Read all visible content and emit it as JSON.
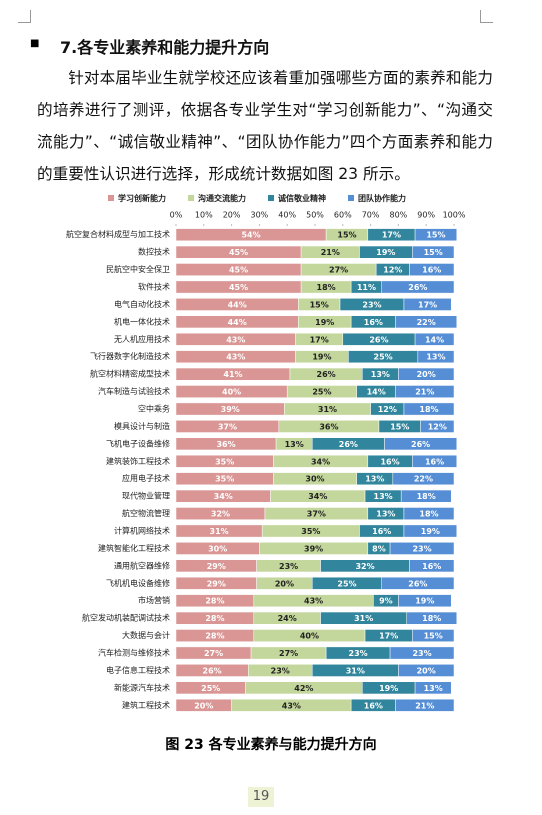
{
  "heading": "7.各专业素养和能力提升方向",
  "paragraph": "针对本届毕业生就学校还应该着重加强哪些方面的素养和能力的培养进行了测评，依据各专业学生对“学习创新能力”、“沟通交流能力”、“诚信敬业精神”、“团队协作能力”四个方面素养和能力的重要性认识进行选择，形成统计数据如图 23 所示。",
  "chart_data": {
    "type": "bar",
    "stacked": true,
    "orientation": "horizontal",
    "legend": "top",
    "categories": [
      "航空复合材料成型与加工技术",
      "数控技术",
      "民航空中安全保卫",
      "软件技术",
      "电气自动化技术",
      "机电一体化技术",
      "无人机应用技术",
      "飞行器数字化制造技术",
      "航空材料精密成型技术",
      "汽车制造与试验技术",
      "空中乘务",
      "模具设计与制造",
      "飞机电子设备维修",
      "建筑装饰工程技术",
      "应用电子技术",
      "现代物业管理",
      "航空物流管理",
      "计算机网络技术",
      "建筑智能化工程技术",
      "通用航空器维修",
      "飞机机电设备维修",
      "市场营销",
      "航空发动机装配调试技术",
      "大数据与会计",
      "汽车检测与维修技术",
      "电子信息工程技术",
      "新能源汽车技术",
      "建筑工程技术"
    ],
    "series": [
      {
        "name": "学习创新能力",
        "color": "#d99694",
        "values": [
          54,
          45,
          45,
          45,
          44,
          44,
          43,
          43,
          41,
          40,
          39,
          37,
          36,
          35,
          35,
          34,
          32,
          31,
          30,
          29,
          29,
          28,
          28,
          28,
          27,
          26,
          25,
          20
        ],
        "value_labels": [
          "54%",
          "45%",
          "45%",
          "45%",
          "44%",
          "44%",
          "43%",
          "43%",
          "41%",
          "40%",
          "39%",
          "37%",
          "36%",
          "35%",
          "35%",
          "34%",
          "32%",
          "31%",
          "30%",
          "29%",
          "29%",
          "28%",
          "28%",
          "28%",
          "27%",
          "26%",
          "25%",
          "20%"
        ]
      },
      {
        "name": "沟通交流能力",
        "color": "#c3d69b",
        "values": [
          15,
          21,
          27,
          18,
          15,
          19,
          17,
          19,
          26,
          25,
          31,
          36,
          13,
          34,
          30,
          34,
          37,
          35,
          39,
          23,
          20,
          43,
          24,
          40,
          27,
          23,
          42,
          43
        ],
        "value_labels": [
          "15%",
          "21%",
          "27%",
          "18%",
          "15%",
          "19%",
          "17%",
          "19%",
          "26%",
          "25%",
          "31%",
          "36%",
          "13%",
          "34%",
          "30%",
          "34%",
          "37%",
          "35%",
          "39%",
          "23%",
          "20%",
          "43%",
          "24%",
          "40%",
          "27%",
          "23%",
          "42%",
          "43%"
        ]
      },
      {
        "name": "诚信敬业精神",
        "color": "#31859c",
        "values": [
          17,
          19,
          12,
          11,
          23,
          16,
          26,
          25,
          13,
          14,
          12,
          15,
          26,
          16,
          13,
          13,
          13,
          16,
          8,
          32,
          25,
          9,
          31,
          17,
          23,
          31,
          19,
          16
        ],
        "value_labels": [
          "17%",
          "19%",
          "12%",
          "11%",
          "23%",
          "16%",
          "26%",
          "25%",
          "13%",
          "14%",
          "12%",
          "15%",
          "26%",
          "16%",
          "13%",
          "13%",
          "13%",
          "16%",
          "8%",
          "32%",
          "25%",
          "9%",
          "31%",
          "17%",
          "23%",
          "31%",
          "19%",
          "16%"
        ]
      },
      {
        "name": "团队协作能力",
        "color": "#558ed5",
        "values": [
          15,
          15,
          16,
          26,
          17,
          22,
          14,
          13,
          20,
          21,
          18,
          12,
          26,
          16,
          22,
          18,
          18,
          19,
          23,
          16,
          26,
          19,
          18,
          15,
          23,
          20,
          13,
          21
        ],
        "value_labels": [
          "15%",
          "15%",
          "16%",
          "26%",
          "17%",
          "22%",
          "14%",
          "13%",
          "20%",
          "21%",
          "18%",
          "12%",
          "26%",
          "16%",
          "22%",
          "18%",
          "18%",
          "19%",
          "23%",
          "16%",
          "26%",
          "19%",
          "18%",
          "15%",
          "23%",
          "20%",
          "13%",
          "21%"
        ]
      }
    ],
    "xlim": [
      0,
      100
    ],
    "xticks": [
      {
        "value": 0,
        "label": "0%"
      },
      {
        "value": 10,
        "label": "10%"
      },
      {
        "value": 20,
        "label": "20%"
      },
      {
        "value": 30,
        "label": "30%"
      },
      {
        "value": 40,
        "label": "40%"
      },
      {
        "value": 50,
        "label": "50%"
      },
      {
        "value": 60,
        "label": "60%"
      },
      {
        "value": 70,
        "label": "70%"
      },
      {
        "value": 80,
        "label": "80%"
      },
      {
        "value": 90,
        "label": "90%"
      },
      {
        "value": 100,
        "label": "100%"
      }
    ]
  },
  "caption": "图 23  各专业素养与能力提升方向",
  "page_number": "19"
}
